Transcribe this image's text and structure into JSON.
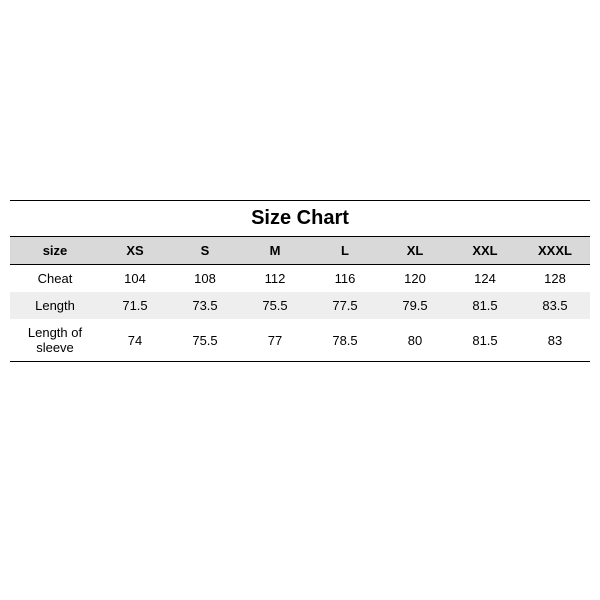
{
  "size_chart": {
    "type": "table",
    "title": "Size Chart",
    "title_fontsize": 20,
    "header_bg": "#d9d9d9",
    "alt_row_bg": "#eeeeee",
    "border_color": "#000000",
    "text_color": "#000000",
    "font_family": "Arial",
    "cell_fontsize": 13,
    "label_column_header": "size",
    "columns": [
      "XS",
      "S",
      "M",
      "L",
      "XL",
      "XXL",
      "XXXL"
    ],
    "rows": [
      {
        "label": "Cheat",
        "values": [
          104,
          108,
          112,
          116,
          120,
          124,
          128
        ]
      },
      {
        "label": "Length",
        "values": [
          71.5,
          73.5,
          75.5,
          77.5,
          79.5,
          81.5,
          83.5
        ]
      },
      {
        "label": "Length of sleeve",
        "values": [
          74,
          75.5,
          77,
          78.5,
          80,
          81.5,
          83
        ]
      }
    ]
  }
}
